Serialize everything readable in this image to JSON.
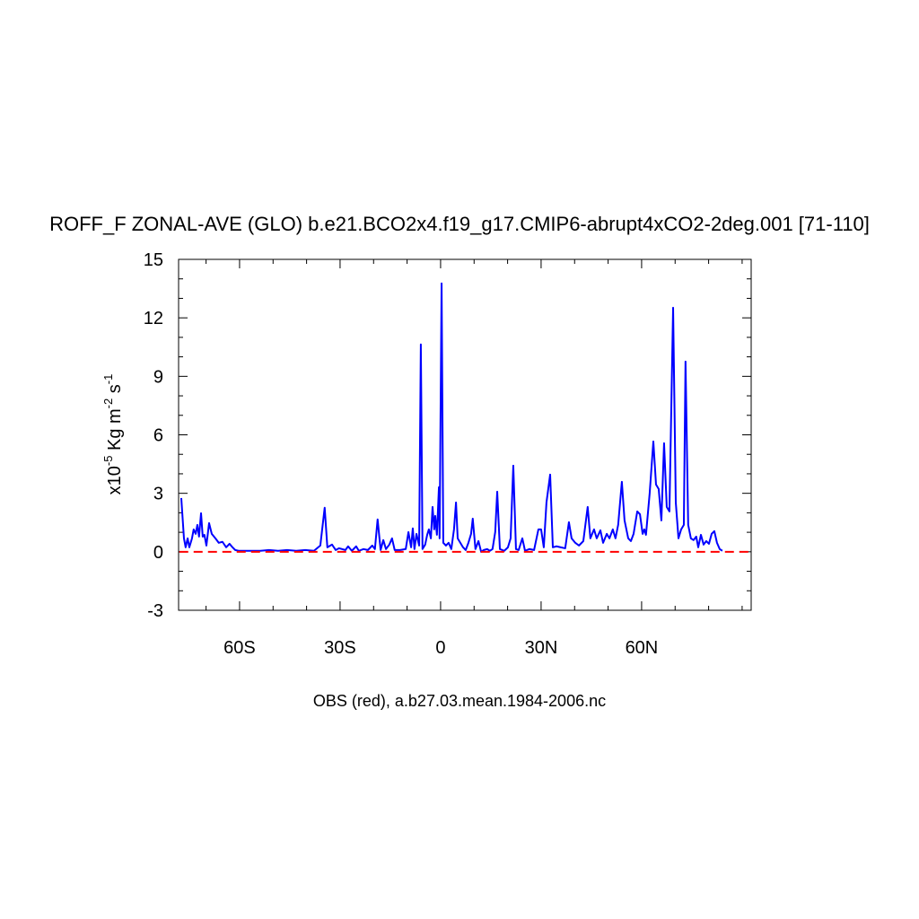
{
  "chart_data": {
    "type": "line",
    "title": "ROFF_F ZONAL-AVE (GLO) b.e21.BCO2x4.f19_g17.CMIP6-abrupt4xCO2-2deg.001 [71-110]",
    "xlabel": "OBS (red), a.b27.03.mean.1984-2006.nc",
    "ylabel": [
      "x10",
      "-5",
      " Kg m",
      "-2",
      " s",
      "-1"
    ],
    "xlim": [
      -78.2,
      92.7
    ],
    "ylim": [
      -3,
      15
    ],
    "xticks": [
      {
        "value": -60,
        "label": "60S"
      },
      {
        "value": -30,
        "label": "30S"
      },
      0,
      {
        "value": 30,
        "label": "30N"
      },
      {
        "value": 60,
        "label": "60N"
      }
    ],
    "xminorticks": [
      -70,
      -50,
      -40,
      -20,
      -10,
      10,
      20,
      40,
      50,
      70,
      80,
      90
    ],
    "yticks": [
      -3,
      0,
      3,
      6,
      9,
      12,
      15
    ],
    "yminorticks": [
      -2,
      -1,
      1,
      2,
      4,
      5,
      7,
      8,
      10,
      11,
      13,
      14
    ],
    "series": [
      {
        "color": "#0000ff",
        "dashed": false,
        "x": [
          -77.4,
          -76.6,
          -76.1,
          -75.5,
          -75.0,
          -74.2,
          -73.7,
          -73.1,
          -72.6,
          -72.1,
          -71.5,
          -71.0,
          -70.5,
          -69.9,
          -69.1,
          -68.3,
          -67.2,
          -66.2,
          -65.1,
          -64.0,
          -63.0,
          -62.1,
          -61.3,
          -60.3,
          -53.8,
          -51.2,
          -48.5,
          -45.8,
          -43.1,
          -40.4,
          -37.8,
          -35.9,
          -34.6,
          -33.8,
          -32.4,
          -31.3,
          -30.3,
          -28.4,
          -27.6,
          -26.5,
          -25.2,
          -24.4,
          -23.0,
          -21.7,
          -20.4,
          -19.6,
          -18.8,
          -17.9,
          -17.1,
          -16.3,
          -15.3,
          -14.5,
          -13.7,
          -12.1,
          -10.4,
          -9.6,
          -8.8,
          -8.3,
          -7.8,
          -7.2,
          -6.4,
          -5.9,
          -5.4,
          -4.6,
          -4.0,
          -3.5,
          -2.9,
          -2.4,
          -1.9,
          -1.6,
          -1.1,
          -0.5,
          -0.3,
          0.3,
          0.8,
          1.6,
          2.4,
          3.2,
          4.0,
          4.6,
          5.1,
          5.9,
          6.7,
          7.5,
          8.3,
          9.1,
          9.6,
          10.4,
          11.3,
          12.1,
          12.9,
          13.9,
          14.7,
          15.5,
          16.3,
          16.9,
          17.7,
          19.0,
          20.1,
          20.9,
          21.7,
          22.5,
          23.3,
          24.4,
          25.2,
          26.5,
          27.9,
          29.2,
          30.0,
          30.8,
          31.6,
          32.7,
          33.5,
          34.6,
          35.9,
          37.2,
          38.3,
          39.1,
          40.2,
          41.3,
          42.6,
          43.9,
          44.7,
          45.8,
          46.6,
          47.7,
          48.5,
          49.6,
          50.4,
          51.4,
          52.2,
          53.0,
          54.1,
          54.9,
          56.0,
          56.8,
          57.6,
          58.7,
          59.5,
          60.3,
          60.8,
          61.3,
          62.4,
          63.5,
          64.3,
          65.1,
          65.9,
          66.7,
          67.5,
          68.3,
          69.4,
          70.2,
          71.0,
          71.8,
          72.6,
          73.1,
          73.9,
          74.7,
          75.5,
          76.3,
          76.9,
          77.7,
          78.5,
          79.3,
          80.1,
          80.9,
          81.7,
          82.5,
          83.3,
          84.1
        ],
        "values": [
          2.76,
          0.69,
          0.23,
          0.69,
          0.23,
          0.69,
          1.15,
          0.92,
          1.38,
          0.78,
          1.98,
          0.78,
          0.87,
          0.32,
          1.47,
          0.92,
          0.69,
          0.46,
          0.51,
          0.23,
          0.41,
          0.23,
          0.09,
          0.05,
          0.05,
          0.09,
          0.05,
          0.09,
          0.05,
          0.09,
          0.05,
          0.32,
          2.26,
          0.23,
          0.37,
          0.09,
          0.18,
          0.09,
          0.28,
          0.05,
          0.28,
          0.05,
          0.14,
          0.09,
          0.32,
          0.14,
          1.66,
          0.09,
          0.6,
          0.14,
          0.37,
          0.69,
          0.09,
          0.09,
          0.14,
          1.01,
          0.23,
          1.2,
          0.14,
          0.92,
          0.32,
          10.64,
          0.14,
          0.37,
          0.87,
          1.15,
          0.69,
          2.3,
          1.15,
          1.84,
          0.87,
          3.31,
          0.69,
          13.77,
          0.46,
          0.32,
          0.46,
          0.14,
          1.15,
          2.53,
          0.69,
          0.46,
          0.23,
          0.09,
          0.46,
          0.92,
          1.7,
          0.14,
          0.55,
          0,
          0.09,
          0.14,
          0.05,
          0.14,
          1.01,
          3.08,
          0.14,
          0.05,
          0.23,
          0.69,
          4.42,
          0.14,
          0.09,
          0.69,
          0.05,
          0.14,
          0.09,
          1.15,
          1.15,
          0.23,
          2.53,
          3.96,
          0.23,
          0.28,
          0.23,
          0.18,
          1.52,
          0.69,
          0.46,
          0.32,
          0.55,
          2.3,
          0.69,
          1.15,
          0.69,
          1.1,
          0.46,
          0.92,
          0.69,
          1.15,
          0.69,
          1.38,
          3.59,
          1.61,
          0.69,
          0.55,
          0.92,
          2.07,
          1.93,
          0.92,
          1.15,
          0.87,
          2.99,
          5.66,
          3.45,
          3.22,
          1.61,
          5.57,
          2.3,
          2.07,
          12.52,
          2.53,
          0.69,
          1.15,
          1.38,
          9.76,
          1.38,
          0.69,
          0.6,
          0.78,
          0.23,
          0.87,
          0.37,
          0.55,
          0.41,
          0.92,
          1.06,
          0.46,
          0.14,
          0.05
        ]
      },
      {
        "color": "#ff0000",
        "dashed": true,
        "x": [
          -78,
          92
        ],
        "values": [
          0,
          0
        ]
      }
    ]
  }
}
